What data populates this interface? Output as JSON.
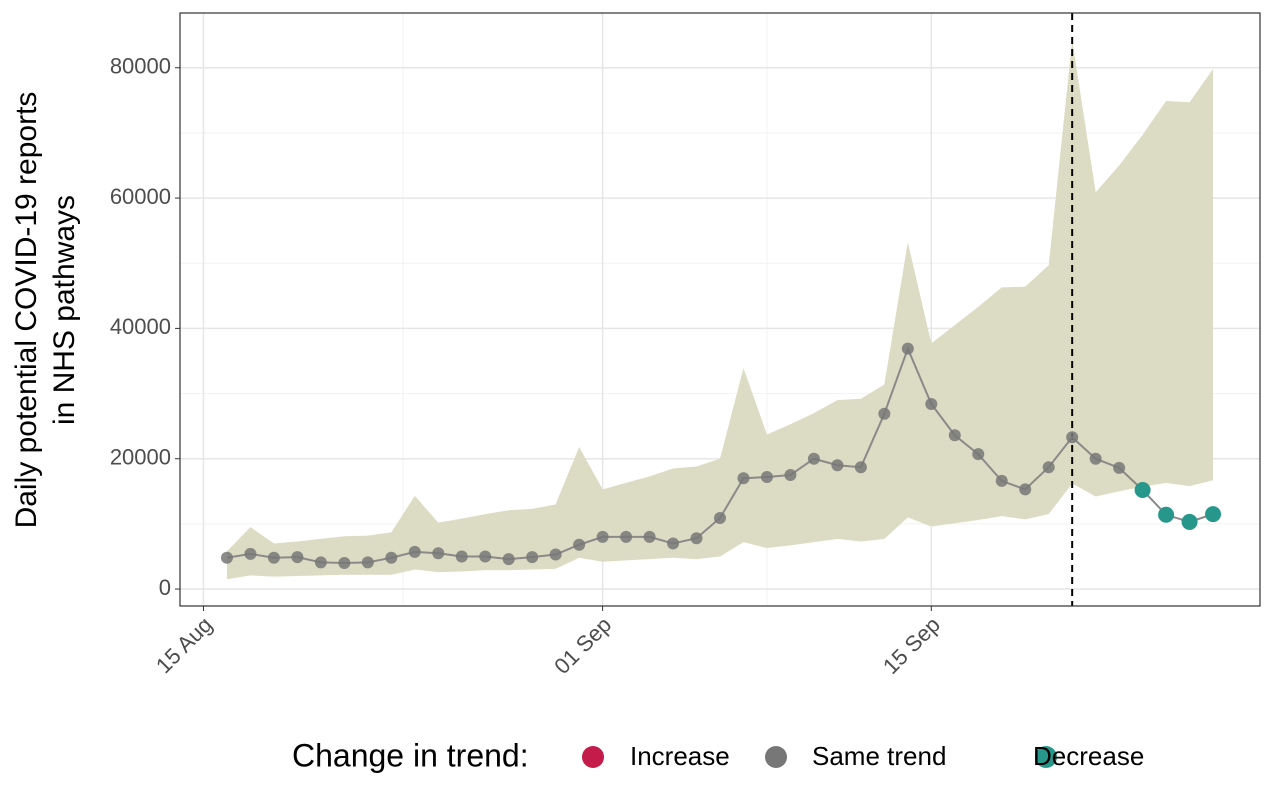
{
  "chart_data": {
    "type": "line",
    "y_label": [
      "Daily potential COVID-19 reports",
      "in NHS pathways"
    ],
    "x": [
      "16 Aug",
      "17 Aug",
      "18 Aug",
      "19 Aug",
      "20 Aug",
      "21 Aug",
      "22 Aug",
      "23 Aug",
      "24 Aug",
      "25 Aug",
      "26 Aug",
      "27 Aug",
      "28 Aug",
      "29 Aug",
      "30 Aug",
      "31 Aug",
      "01 Sep",
      "02 Sep",
      "03 Sep",
      "04 Sep",
      "05 Sep",
      "06 Sep",
      "07 Sep",
      "08 Sep",
      "09 Sep",
      "10 Sep",
      "11 Sep",
      "12 Sep",
      "13 Sep",
      "14 Sep",
      "15 Sep",
      "16 Sep",
      "17 Sep",
      "18 Sep",
      "19 Sep",
      "20 Sep",
      "21 Sep",
      "22 Sep",
      "23 Sep",
      "24 Sep",
      "25 Sep",
      "26 Sep",
      "27 Sep"
    ],
    "values": [
      4800,
      5400,
      4800,
      4900,
      4100,
      4000,
      4100,
      4800,
      5700,
      5500,
      5000,
      5000,
      4600,
      4900,
      5300,
      6800,
      8000,
      8000,
      8000,
      7000,
      7800,
      10900,
      17000,
      17200,
      17500,
      20000,
      19000,
      18700,
      26900,
      36900,
      28400,
      23600,
      20700,
      16600,
      15300,
      18700,
      23300,
      20000,
      18600,
      15200,
      11400,
      10300,
      11500
    ],
    "upper": [
      5800,
      9500,
      7000,
      7300,
      7700,
      8100,
      8200,
      8700,
      14300,
      10200,
      10800,
      11500,
      12100,
      12300,
      13000,
      21800,
      15300,
      16300,
      17300,
      18500,
      18800,
      20000,
      33900,
      23700,
      25300,
      27000,
      29000,
      29200,
      31400,
      53200,
      37700,
      40500,
      43300,
      46300,
      46400,
      49700,
      84200,
      60900,
      65000,
      69700,
      74900,
      74700,
      79800
    ],
    "lower": [
      1500,
      2100,
      1900,
      2000,
      2100,
      2200,
      2200,
      2200,
      3000,
      2600,
      2700,
      2900,
      2900,
      3000,
      3100,
      4800,
      4200,
      4400,
      4600,
      4800,
      4600,
      5000,
      7200,
      6300,
      6700,
      7200,
      7700,
      7300,
      7700,
      11000,
      9600,
      10100,
      10600,
      11200,
      10700,
      11500,
      16200,
      14200,
      15000,
      15700,
      16300,
      15800,
      16700
    ],
    "trend": [
      "Same trend",
      "Same trend",
      "Same trend",
      "Same trend",
      "Same trend",
      "Same trend",
      "Same trend",
      "Same trend",
      "Same trend",
      "Same trend",
      "Same trend",
      "Same trend",
      "Same trend",
      "Same trend",
      "Same trend",
      "Same trend",
      "Same trend",
      "Same trend",
      "Same trend",
      "Same trend",
      "Same trend",
      "Same trend",
      "Same trend",
      "Same trend",
      "Same trend",
      "Same trend",
      "Same trend",
      "Same trend",
      "Same trend",
      "Same trend",
      "Same trend",
      "Same trend",
      "Same trend",
      "Same trend",
      "Same trend",
      "Same trend",
      "Same trend",
      "Same trend",
      "Same trend",
      "Decrease",
      "Decrease",
      "Decrease",
      "Decrease"
    ],
    "xlim": [
      "14 Aug",
      "29 Sep"
    ],
    "xticks": [
      "15 Aug",
      "01 Sep",
      "15 Sep"
    ],
    "ylim": [
      -2600,
      88400
    ],
    "yticks": [
      0,
      20000,
      40000,
      60000,
      80000
    ],
    "vline": "21 Sep",
    "grid": true,
    "ribbon_color": "#dcdbc3",
    "line_color": "#8a8a8a",
    "legend": {
      "position": "bottom",
      "title": "Change in trend:",
      "items": [
        {
          "name": "Increase",
          "color": "#c51b4a"
        },
        {
          "name": "Same trend",
          "color": "#777777"
        },
        {
          "name": "Decrease",
          "color": "#26978a"
        }
      ]
    }
  }
}
